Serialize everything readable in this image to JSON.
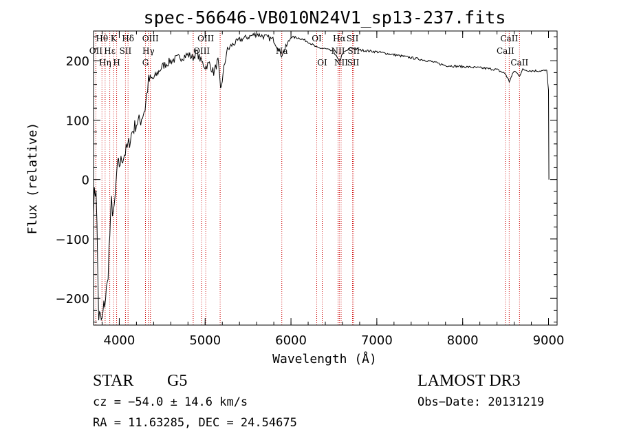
{
  "chart_data": {
    "type": "line",
    "title": "spec-56646-VB010N24V1_sp13-237.fits",
    "xlabel": "Wavelength (Å)",
    "ylabel": "Flux (relative)",
    "xlim": [
      3700,
      9100
    ],
    "ylim": [
      -245,
      250
    ],
    "xticks": [
      4000,
      5000,
      6000,
      7000,
      8000,
      9000
    ],
    "yticks": [
      -200,
      -100,
      0,
      100,
      200
    ],
    "xtick_labels": [
      "4000",
      "5000",
      "6000",
      "7000",
      "8000",
      "9000"
    ],
    "ytick_labels": [
      "−200",
      "−100",
      "0",
      "100",
      "200"
    ],
    "grid": false,
    "series": [
      {
        "x": [
          3700,
          3730,
          3760,
          3800,
          3830,
          3860,
          3880,
          3910,
          3940,
          3970,
          4000,
          4050,
          4100,
          4150,
          4200,
          4250,
          4300,
          4340,
          4400,
          4500,
          4600,
          4700,
          4800,
          4860,
          4900,
          4950,
          5000,
          5050,
          5100,
          5150,
          5180,
          5250,
          5300,
          5400,
          5500,
          5600,
          5700,
          5800,
          5890,
          5950,
          6000,
          6100,
          6200,
          6300,
          6400,
          6500,
          6563,
          6600,
          6700,
          6800,
          7000,
          7200,
          7400,
          7600,
          7800,
          8000,
          8200,
          8400,
          8498,
          8542,
          8600,
          8662,
          8700,
          8800,
          8900,
          8980,
          9000,
          9005
        ],
        "y": [
          -40,
          -10,
          -230,
          -240,
          -205,
          -180,
          -120,
          -40,
          -60,
          10,
          25,
          40,
          55,
          80,
          95,
          100,
          120,
          165,
          170,
          190,
          200,
          205,
          210,
          205,
          215,
          200,
          190,
          195,
          180,
          200,
          150,
          215,
          225,
          235,
          240,
          245,
          240,
          235,
          210,
          225,
          240,
          238,
          232,
          222,
          220,
          215,
          198,
          212,
          222,
          218,
          215,
          210,
          205,
          200,
          192,
          190,
          188,
          185,
          178,
          165,
          183,
          175,
          185,
          183,
          183,
          183,
          150,
          0
        ]
      }
    ],
    "line_labels": [
      {
        "text": "Hθ",
        "wl": 3798,
        "row": 0
      },
      {
        "text": "OII",
        "wl": 3727,
        "row": 1
      },
      {
        "text": "Hη",
        "wl": 3835,
        "row": 2
      },
      {
        "text": "K",
        "wl": 3934,
        "row": 0
      },
      {
        "text": "Hε",
        "wl": 3889,
        "row": 1
      },
      {
        "text": "H",
        "wl": 3969,
        "row": 2
      },
      {
        "text": "Hδ",
        "wl": 4102,
        "row": 0
      },
      {
        "text": "SII",
        "wl": 4072,
        "row": 1
      },
      {
        "text": "OIII",
        "wl": 4363,
        "row": 0
      },
      {
        "text": "Hγ",
        "wl": 4340,
        "row": 1
      },
      {
        "text": "G",
        "wl": 4305,
        "row": 2
      },
      {
        "text": "OIII",
        "wl": 5007,
        "row": 0
      },
      {
        "text": "OIII",
        "wl": 4959,
        "row": 1
      },
      {
        "text": "Na",
        "wl": 5893,
        "row": 1
      },
      {
        "text": "OI",
        "wl": 6300,
        "row": 0
      },
      {
        "text": "OI",
        "wl": 6364,
        "row": 2
      },
      {
        "text": "Hα",
        "wl": 6563,
        "row": 0
      },
      {
        "text": "SII",
        "wl": 6717,
        "row": 0
      },
      {
        "text": "NII",
        "wl": 6548,
        "row": 1
      },
      {
        "text": "SII",
        "wl": 6731,
        "row": 1
      },
      {
        "text": "NII",
        "wl": 6584,
        "row": 2
      },
      {
        "text": "SII",
        "wl": 6725,
        "row": 2
      },
      {
        "text": "CaII",
        "wl": 8542,
        "row": 0
      },
      {
        "text": "CaII",
        "wl": 8498,
        "row": 1
      },
      {
        "text": "CaII",
        "wl": 8662,
        "row": 2
      }
    ],
    "line_markers": [
      3727,
      3798,
      3835,
      3889,
      3934,
      3969,
      4072,
      4102,
      4305,
      4340,
      4363,
      4861,
      4959,
      5007,
      5175,
      5893,
      6300,
      6364,
      6548,
      6563,
      6584,
      6717,
      6731,
      8498,
      8542,
      8662
    ],
    "marker_color": "#cc0000"
  },
  "info": {
    "object_class": "STAR",
    "subclass": "G5",
    "survey": "LAMOST DR3",
    "cz": "cz = −54.0 ± 14.6 km/s",
    "obs_date": "Obs−Date: 20131219",
    "coords": "RA =  11.63285, DEC =  24.54675"
  }
}
